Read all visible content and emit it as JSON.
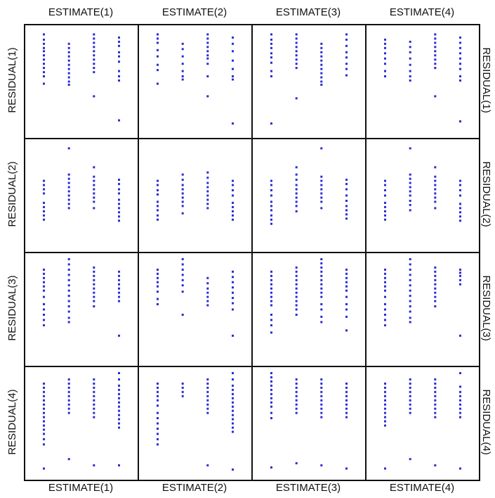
{
  "chart_data": {
    "type": "scatter",
    "title": "",
    "grid": false,
    "legend": "none",
    "layout": "scatterplot-matrix 4x4",
    "colors": {
      "point": "#2b2bd6",
      "frame": "#111111",
      "background": "#ffffff"
    },
    "col_labels": [
      "ESTIMATE(1)",
      "ESTIMATE(2)",
      "ESTIMATE(3)",
      "ESTIMATE(4)"
    ],
    "row_labels": [
      "RESIDUAL(1)",
      "RESIDUAL(2)",
      "RESIDUAL(3)",
      "RESIDUAL(4)"
    ],
    "x_levels": [
      1,
      2,
      3,
      4
    ],
    "xlim": [
      0.5,
      4.5
    ],
    "ylim": [
      0,
      1
    ],
    "panels": [
      [
        [
          [
            1,
            [
              0.95,
              0.9,
              0.86,
              0.82,
              0.79,
              0.75,
              0.71,
              0.67,
              0.63,
              0.59,
              0.55,
              0.48
            ]
          ],
          [
            2,
            [
              0.86,
              0.82,
              0.78,
              0.74,
              0.7,
              0.66,
              0.62,
              0.58,
              0.54,
              0.5,
              0.47
            ]
          ],
          [
            3,
            [
              0.95,
              0.91,
              0.87,
              0.83,
              0.79,
              0.75,
              0.71,
              0.67,
              0.63,
              0.59,
              0.36
            ]
          ],
          [
            4,
            [
              0.92,
              0.88,
              0.84,
              0.78,
              0.74,
              0.69,
              0.6,
              0.55,
              0.51,
              0.13
            ]
          ]
        ],
        [
          [
            1,
            [
              0.95,
              0.91,
              0.87,
              0.8,
              0.74,
              0.66,
              0.61,
              0.48
            ]
          ],
          [
            2,
            [
              0.86,
              0.81,
              0.74,
              0.67,
              0.6,
              0.55,
              0.52
            ]
          ],
          [
            3,
            [
              0.95,
              0.91,
              0.87,
              0.83,
              0.79,
              0.75,
              0.72,
              0.67,
              0.55,
              0.36
            ]
          ],
          [
            4,
            [
              0.92,
              0.86,
              0.79,
              0.7,
              0.62,
              0.55,
              0.52,
              0.1
            ]
          ]
        ],
        [
          [
            1,
            [
              0.95,
              0.9,
              0.86,
              0.82,
              0.77,
              0.73,
              0.68,
              0.6,
              0.55,
              0.1
            ]
          ],
          [
            2,
            [
              0.95,
              0.91,
              0.87,
              0.83,
              0.79,
              0.75,
              0.71,
              0.67,
              0.63,
              0.34
            ]
          ],
          [
            3,
            [
              0.86,
              0.82,
              0.78,
              0.74,
              0.7,
              0.66,
              0.62,
              0.58,
              0.54,
              0.5,
              0.47
            ]
          ],
          [
            4,
            [
              0.95,
              0.9,
              0.84,
              0.78,
              0.73,
              0.67,
              0.62,
              0.56
            ]
          ]
        ],
        [
          [
            1,
            [
              0.9,
              0.86,
              0.82,
              0.77,
              0.72,
              0.67,
              0.6,
              0.55
            ]
          ],
          [
            2,
            [
              0.88,
              0.83,
              0.78,
              0.72,
              0.66,
              0.6,
              0.55,
              0.51
            ]
          ],
          [
            3,
            [
              0.95,
              0.91,
              0.87,
              0.83,
              0.79,
              0.75,
              0.71,
              0.67,
              0.63,
              0.36
            ]
          ],
          [
            4,
            [
              0.92,
              0.87,
              0.82,
              0.77,
              0.72,
              0.67,
              0.62,
              0.55,
              0.51,
              0.12
            ]
          ]
        ]
      ],
      [
        [
          [
            1,
            [
              0.64,
              0.6,
              0.56,
              0.52,
              0.43,
              0.39,
              0.35,
              0.31,
              0.27
            ]
          ],
          [
            2,
            [
              0.95,
              0.7,
              0.66,
              0.62,
              0.58,
              0.54,
              0.5,
              0.46,
              0.42,
              0.38
            ]
          ],
          [
            3,
            [
              0.77,
              0.68,
              0.64,
              0.6,
              0.56,
              0.52,
              0.48,
              0.44,
              0.38
            ]
          ],
          [
            4,
            [
              0.65,
              0.61,
              0.56,
              0.52,
              0.46,
              0.42,
              0.38,
              0.34,
              0.3,
              0.26
            ]
          ]
        ],
        [
          [
            1,
            [
              0.64,
              0.6,
              0.55,
              0.51,
              0.44,
              0.4,
              0.36,
              0.31,
              0.27
            ]
          ],
          [
            2,
            [
              0.7,
              0.65,
              0.6,
              0.56,
              0.52,
              0.48,
              0.44,
              0.4,
              0.33
            ]
          ],
          [
            3,
            [
              0.72,
              0.67,
              0.62,
              0.58,
              0.54,
              0.5,
              0.46,
              0.42,
              0.38
            ]
          ],
          [
            4,
            [
              0.64,
              0.6,
              0.55,
              0.5,
              0.43,
              0.39,
              0.35,
              0.31,
              0.27
            ]
          ]
        ],
        [
          [
            1,
            [
              0.64,
              0.6,
              0.55,
              0.5,
              0.44,
              0.4,
              0.36,
              0.31,
              0.27,
              0.23
            ]
          ],
          [
            2,
            [
              0.77,
              0.7,
              0.65,
              0.6,
              0.56,
              0.52,
              0.48,
              0.44,
              0.4,
              0.35
            ]
          ],
          [
            3,
            [
              0.95,
              0.68,
              0.64,
              0.6,
              0.56,
              0.52,
              0.48,
              0.44,
              0.38
            ]
          ],
          [
            4,
            [
              0.65,
              0.61,
              0.56,
              0.5,
              0.45,
              0.4,
              0.36,
              0.32,
              0.28
            ]
          ]
        ],
        [
          [
            1,
            [
              0.64,
              0.6,
              0.55,
              0.5,
              0.43,
              0.39,
              0.35,
              0.31,
              0.27
            ]
          ],
          [
            2,
            [
              0.95,
              0.7,
              0.66,
              0.62,
              0.58,
              0.54,
              0.5,
              0.45,
              0.41,
              0.36
            ]
          ],
          [
            3,
            [
              0.77,
              0.68,
              0.64,
              0.6,
              0.56,
              0.52,
              0.48,
              0.44,
              0.38
            ]
          ],
          [
            4,
            [
              0.64,
              0.6,
              0.55,
              0.5,
              0.42,
              0.38,
              0.34,
              0.3,
              0.26
            ]
          ]
        ]
      ],
      [
        [
          [
            1,
            [
              0.88,
              0.84,
              0.8,
              0.76,
              0.72,
              0.68,
              0.62,
              0.55,
              0.5,
              0.45,
              0.4,
              0.35
            ]
          ],
          [
            2,
            [
              0.98,
              0.93,
              0.88,
              0.83,
              0.78,
              0.73,
              0.68,
              0.63,
              0.58,
              0.53,
              0.48,
              0.42,
              0.38
            ]
          ],
          [
            3,
            [
              0.9,
              0.86,
              0.82,
              0.78,
              0.74,
              0.7,
              0.66,
              0.62,
              0.58,
              0.53
            ]
          ],
          [
            4,
            [
              0.86,
              0.82,
              0.78,
              0.74,
              0.7,
              0.66,
              0.62,
              0.58,
              0.25
            ]
          ]
        ],
        [
          [
            1,
            [
              0.88,
              0.84,
              0.8,
              0.76,
              0.72,
              0.67,
              0.6,
              0.55
            ]
          ],
          [
            2,
            [
              0.98,
              0.93,
              0.88,
              0.83,
              0.78,
              0.73,
              0.67,
              0.45
            ]
          ],
          [
            3,
            [
              0.8,
              0.75,
              0.7,
              0.66,
              0.62,
              0.58,
              0.54
            ]
          ],
          [
            4,
            [
              0.86,
              0.81,
              0.76,
              0.71,
              0.66,
              0.61,
              0.56,
              0.5,
              0.25
            ]
          ]
        ],
        [
          [
            1,
            [
              0.86,
              0.82,
              0.78,
              0.74,
              0.7,
              0.66,
              0.62,
              0.58,
              0.54,
              0.45,
              0.4,
              0.35,
              0.28
            ]
          ],
          [
            2,
            [
              0.9,
              0.86,
              0.82,
              0.78,
              0.74,
              0.7,
              0.66,
              0.62,
              0.58,
              0.54,
              0.5,
              0.45
            ]
          ],
          [
            3,
            [
              0.98,
              0.94,
              0.9,
              0.86,
              0.82,
              0.78,
              0.74,
              0.7,
              0.66,
              0.62,
              0.55,
              0.5,
              0.43,
              0.38
            ]
          ],
          [
            4,
            [
              0.88,
              0.84,
              0.8,
              0.76,
              0.72,
              0.68,
              0.62,
              0.55,
              0.5,
              0.43,
              0.3
            ]
          ]
        ],
        [
          [
            1,
            [
              0.88,
              0.84,
              0.8,
              0.76,
              0.72,
              0.68,
              0.62,
              0.55,
              0.5,
              0.45,
              0.4,
              0.35
            ]
          ],
          [
            2,
            [
              0.98,
              0.93,
              0.88,
              0.83,
              0.78,
              0.73,
              0.68,
              0.63,
              0.58,
              0.53,
              0.48,
              0.42,
              0.38
            ]
          ],
          [
            3,
            [
              0.9,
              0.86,
              0.82,
              0.78,
              0.74,
              0.7,
              0.66,
              0.62,
              0.58,
              0.53
            ]
          ],
          [
            4,
            [
              0.88,
              0.85,
              0.82,
              0.78,
              0.74,
              0.25
            ]
          ]
        ]
      ],
      [
        [
          [
            1,
            [
              0.88,
              0.84,
              0.8,
              0.76,
              0.72,
              0.68,
              0.64,
              0.6,
              0.56,
              0.52,
              0.48,
              0.44,
              0.4,
              0.35,
              0.3,
              0.07
            ]
          ],
          [
            2,
            [
              0.92,
              0.88,
              0.84,
              0.8,
              0.76,
              0.72,
              0.68,
              0.64,
              0.6,
              0.16
            ]
          ],
          [
            3,
            [
              0.92,
              0.88,
              0.84,
              0.8,
              0.76,
              0.72,
              0.68,
              0.64,
              0.6,
              0.56,
              0.1
            ]
          ],
          [
            4,
            [
              0.98,
              0.92,
              0.86,
              0.82,
              0.78,
              0.74,
              0.7,
              0.66,
              0.62,
              0.58,
              0.54,
              0.5,
              0.46,
              0.1
            ]
          ]
        ],
        [
          [
            1,
            [
              0.88,
              0.84,
              0.8,
              0.76,
              0.72,
              0.67,
              0.6,
              0.55,
              0.5,
              0.45,
              0.4,
              0.35,
              0.3
            ]
          ],
          [
            2,
            [
              0.88,
              0.84,
              0.8,
              0.76
            ]
          ],
          [
            3,
            [
              0.92,
              0.88,
              0.84,
              0.8,
              0.76,
              0.72,
              0.68,
              0.64,
              0.6,
              0.1
            ]
          ],
          [
            4,
            [
              0.98,
              0.92,
              0.86,
              0.82,
              0.78,
              0.74,
              0.7,
              0.66,
              0.62,
              0.58,
              0.54,
              0.5,
              0.46,
              0.42,
              0.06
            ]
          ]
        ],
        [
          [
            1,
            [
              0.98,
              0.94,
              0.9,
              0.86,
              0.82,
              0.78,
              0.74,
              0.7,
              0.66,
              0.6,
              0.55,
              0.08
            ]
          ],
          [
            2,
            [
              0.92,
              0.88,
              0.84,
              0.8,
              0.76,
              0.72,
              0.68,
              0.64,
              0.6,
              0.12
            ]
          ],
          [
            3,
            [
              0.92,
              0.88,
              0.84,
              0.8,
              0.76,
              0.72,
              0.68,
              0.64,
              0.6,
              0.56,
              0.1
            ]
          ],
          [
            4,
            [
              0.88,
              0.84,
              0.8,
              0.76,
              0.72,
              0.68,
              0.64,
              0.6,
              0.56,
              0.07
            ]
          ]
        ],
        [
          [
            1,
            [
              0.88,
              0.84,
              0.8,
              0.76,
              0.72,
              0.68,
              0.64,
              0.6,
              0.56,
              0.52,
              0.48,
              0.07
            ]
          ],
          [
            2,
            [
              0.92,
              0.88,
              0.84,
              0.8,
              0.76,
              0.72,
              0.68,
              0.64,
              0.6,
              0.16
            ]
          ],
          [
            3,
            [
              0.92,
              0.88,
              0.84,
              0.8,
              0.76,
              0.72,
              0.68,
              0.64,
              0.6,
              0.56,
              0.1
            ]
          ],
          [
            4,
            [
              0.98,
              0.85,
              0.8,
              0.76,
              0.72,
              0.68,
              0.64,
              0.6,
              0.56,
              0.07
            ]
          ]
        ]
      ]
    ]
  }
}
